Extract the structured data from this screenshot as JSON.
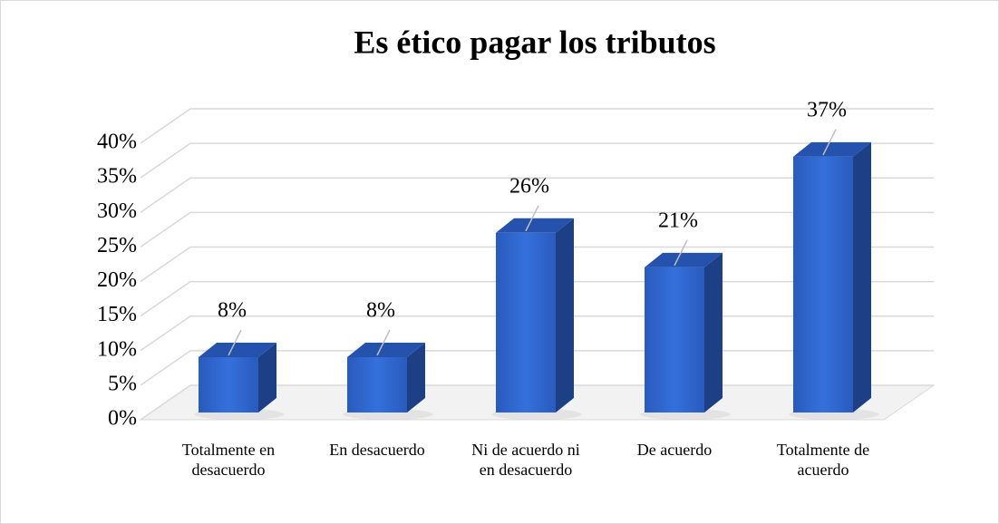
{
  "chart_data": {
    "type": "bar3d",
    "title": "Es ético pagar los tributos",
    "categories": [
      "Totalmente en desacuerdo",
      "En desacuerdo",
      "Ni de acuerdo ni en desacuerdo",
      "De acuerdo",
      "Totalmente de acuerdo"
    ],
    "values": [
      8,
      8,
      26,
      21,
      37
    ],
    "value_labels": [
      "8%",
      "8%",
      "26%",
      "21%",
      "37%"
    ],
    "color": "#2d63c8",
    "ylim": [
      0,
      40
    ],
    "yticks": [
      {
        "value": 0,
        "label": "0%"
      },
      {
        "value": 5,
        "label": "5%"
      },
      {
        "value": 10,
        "label": "10%"
      },
      {
        "value": 15,
        "label": "15%"
      },
      {
        "value": 20,
        "label": "20%"
      },
      {
        "value": 25,
        "label": "25%"
      },
      {
        "value": 30,
        "label": "30%"
      },
      {
        "value": 35,
        "label": "35%"
      },
      {
        "value": 40,
        "label": "40%"
      }
    ],
    "grid": true
  }
}
